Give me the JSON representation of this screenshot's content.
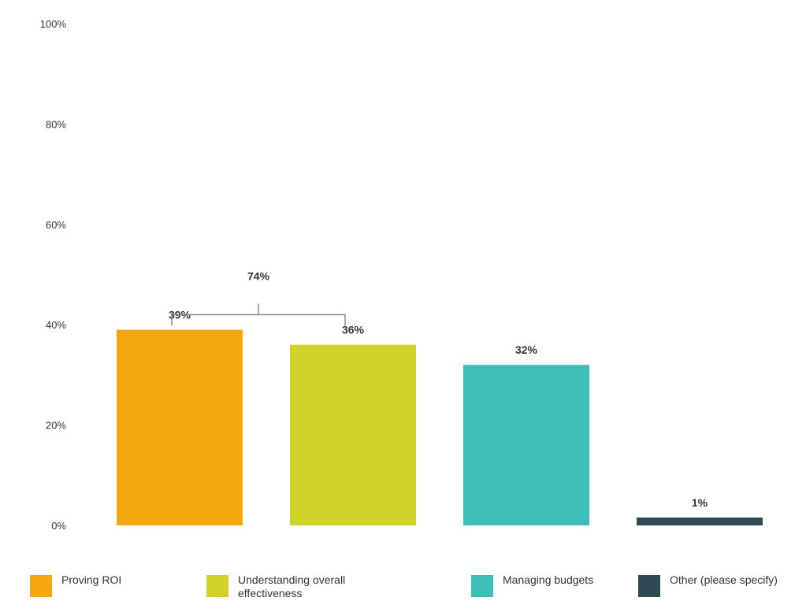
{
  "chart_data": {
    "type": "bar",
    "categories": [
      "Proving ROI",
      "Understanding overall effectiveness",
      "Managing budgets",
      "Other (please specify)"
    ],
    "values": [
      39,
      36,
      32,
      1
    ],
    "data_labels": [
      "39%",
      "36%",
      "32%",
      "1%"
    ],
    "colors": [
      "#F5A70E",
      "#CFD229",
      "#3DBFB8",
      "#2F4A54"
    ],
    "ylim": [
      0,
      100
    ],
    "yticks": [
      "0%",
      "20%",
      "40%",
      "60%",
      "80%",
      "100%"
    ],
    "ytick_values": [
      0,
      20,
      40,
      60,
      80,
      100
    ],
    "grid": false,
    "legend_position": "bottom",
    "annotation": {
      "text": "74%",
      "value": 74,
      "spans_categories": [
        "Proving ROI",
        "Understanding overall effectiveness"
      ]
    }
  }
}
